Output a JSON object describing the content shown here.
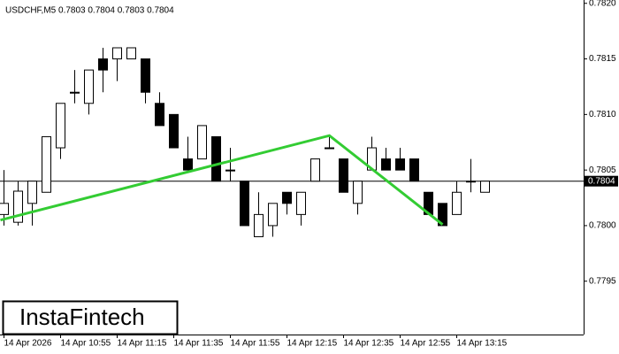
{
  "chart_data": {
    "type": "candlestick",
    "title": "USDCHF,M5  0.7803 0.7804 0.7803 0.7804",
    "categories": [
      "14 Apr 2026",
      null,
      null,
      null,
      "14 Apr 10:55",
      null,
      null,
      null,
      "14 Apr 11:15",
      null,
      null,
      null,
      "14 Apr 11:35",
      null,
      null,
      null,
      "14 Apr 11:55",
      null,
      null,
      null,
      "14 Apr 12:15",
      null,
      null,
      null,
      "14 Apr 12:35",
      null,
      null,
      null,
      "14 Apr 12:55",
      null,
      null,
      null,
      "14 Apr 13:15",
      null,
      null
    ],
    "open": [
      0.7801,
      0.78003,
      0.7802,
      0.7803,
      0.7807,
      0.7812,
      0.7811,
      0.7815,
      0.7815,
      0.7815,
      0.7815,
      0.7811,
      0.781,
      0.7806,
      0.7806,
      0.7808,
      0.7805,
      0.7804,
      0.7799,
      0.78,
      0.7803,
      0.7801,
      0.7804,
      0.7807,
      0.7806,
      0.7802,
      0.7805,
      0.7806,
      0.7806,
      0.7806,
      0.7803,
      0.7802,
      0.7801,
      0.7804,
      0.7803
    ],
    "high": [
      0.7805,
      0.7804,
      0.7804,
      0.7808,
      0.7811,
      0.7814,
      0.7814,
      0.7816,
      0.7816,
      0.7816,
      0.7815,
      0.7812,
      0.781,
      0.7808,
      0.7809,
      0.7808,
      0.7807,
      0.7804,
      0.7803,
      0.7802,
      0.7803,
      0.7803,
      0.7806,
      0.7808,
      0.7806,
      0.7804,
      0.7808,
      0.7807,
      0.7807,
      0.7806,
      0.7803,
      0.7802,
      0.7804,
      0.7806,
      0.7804
    ],
    "low": [
      0.78,
      0.78,
      0.78,
      0.7803,
      0.7806,
      0.7811,
      0.781,
      0.7812,
      0.7813,
      0.7815,
      0.7811,
      0.7809,
      0.7807,
      0.7805,
      0.7806,
      0.7804,
      0.7804,
      0.78,
      0.7799,
      0.7799,
      0.7801,
      0.78,
      0.7804,
      0.7807,
      0.7803,
      0.7801,
      0.7805,
      0.7805,
      0.7805,
      0.7804,
      0.7801,
      0.78,
      0.7801,
      0.7803,
      0.7803
    ],
    "close": [
      0.7802,
      0.78031,
      0.7804,
      0.7808,
      0.7811,
      0.7812,
      0.7814,
      0.7814,
      0.7816,
      0.7816,
      0.7812,
      0.7809,
      0.7807,
      0.7805,
      0.7809,
      0.7804,
      0.7805,
      0.78,
      0.7801,
      0.7802,
      0.7802,
      0.7803,
      0.7806,
      0.7807,
      0.7803,
      0.7804,
      0.7807,
      0.7805,
      0.7805,
      0.7804,
      0.7801,
      0.78,
      0.7803,
      0.7804,
      0.7804
    ],
    "up_color": "#ffffff",
    "down_color": "#000000",
    "ylim": [
      0.77902,
      0.78203
    ],
    "yticks": [
      {
        "value": 0.7795,
        "label": "0.7795"
      },
      {
        "value": 0.78,
        "label": "0.7800"
      },
      {
        "value": 0.7805,
        "label": "0.7805"
      },
      {
        "value": 0.781,
        "label": "0.7810"
      },
      {
        "value": 0.7815,
        "label": "0.7815"
      },
      {
        "value": 0.782,
        "label": "0.7820"
      }
    ],
    "last_price": {
      "value": 0.7804,
      "label": "0.7804"
    },
    "overlay": {
      "color": "#33cc33",
      "x": [
        -0.25,
        23,
        31
      ],
      "y": [
        0.78005,
        0.78081,
        0.78001
      ]
    },
    "watermark": "InstaFintech"
  }
}
